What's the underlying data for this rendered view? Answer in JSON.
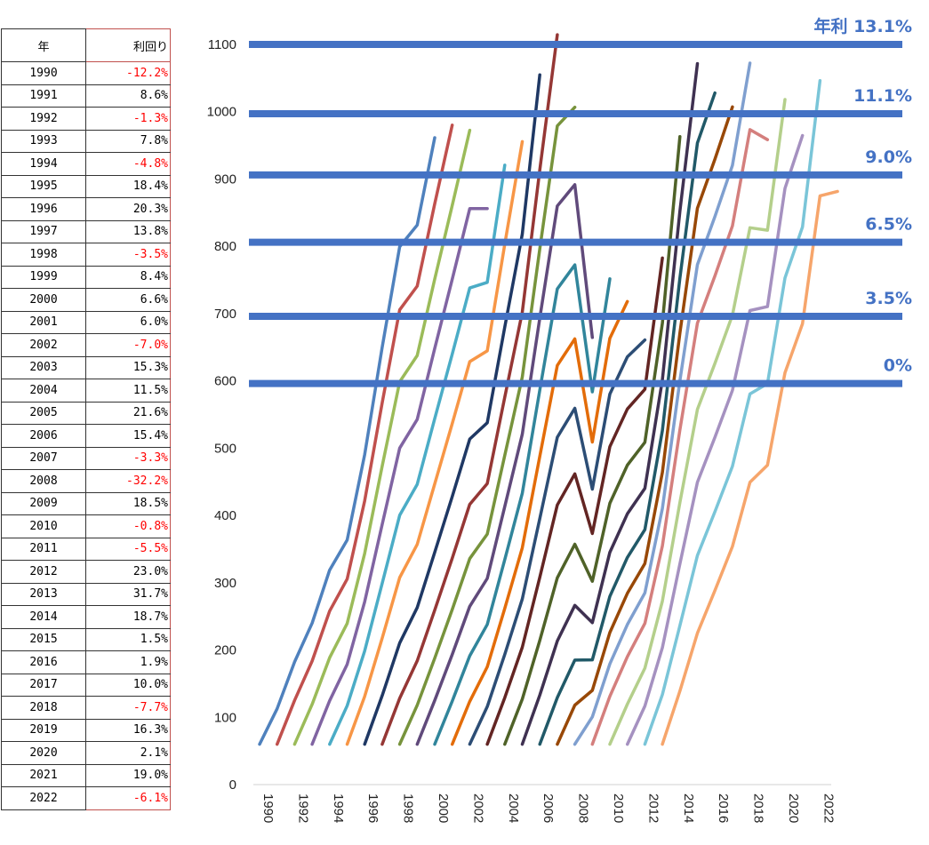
{
  "table": {
    "header_year": "年",
    "header_rate": "利回り",
    "rows": [
      {
        "year": "1990",
        "rate": "-12.2%",
        "neg": true
      },
      {
        "year": "1991",
        "rate": "8.6%",
        "neg": false
      },
      {
        "year": "1992",
        "rate": "-1.3%",
        "neg": true
      },
      {
        "year": "1993",
        "rate": "7.8%",
        "neg": false
      },
      {
        "year": "1994",
        "rate": "-4.8%",
        "neg": true
      },
      {
        "year": "1995",
        "rate": "18.4%",
        "neg": false
      },
      {
        "year": "1996",
        "rate": "20.3%",
        "neg": false
      },
      {
        "year": "1997",
        "rate": "13.8%",
        "neg": false
      },
      {
        "year": "1998",
        "rate": "-3.5%",
        "neg": true
      },
      {
        "year": "1999",
        "rate": "8.4%",
        "neg": false
      },
      {
        "year": "2000",
        "rate": "6.6%",
        "neg": false
      },
      {
        "year": "2001",
        "rate": "6.0%",
        "neg": false
      },
      {
        "year": "2002",
        "rate": "-7.0%",
        "neg": true
      },
      {
        "year": "2003",
        "rate": "15.3%",
        "neg": false
      },
      {
        "year": "2004",
        "rate": "11.5%",
        "neg": false
      },
      {
        "year": "2005",
        "rate": "21.6%",
        "neg": false
      },
      {
        "year": "2006",
        "rate": "15.4%",
        "neg": false
      },
      {
        "year": "2007",
        "rate": "-3.3%",
        "neg": true
      },
      {
        "year": "2008",
        "rate": "-32.2%",
        "neg": true
      },
      {
        "year": "2009",
        "rate": "18.5%",
        "neg": false
      },
      {
        "year": "2010",
        "rate": "-0.8%",
        "neg": true
      },
      {
        "year": "2011",
        "rate": "-5.5%",
        "neg": true
      },
      {
        "year": "2012",
        "rate": "23.0%",
        "neg": false
      },
      {
        "year": "2013",
        "rate": "31.7%",
        "neg": false
      },
      {
        "year": "2014",
        "rate": "18.7%",
        "neg": false
      },
      {
        "year": "2015",
        "rate": "1.5%",
        "neg": false
      },
      {
        "year": "2016",
        "rate": "1.9%",
        "neg": false
      },
      {
        "year": "2017",
        "rate": "10.0%",
        "neg": false
      },
      {
        "year": "2018",
        "rate": "-7.7%",
        "neg": true
      },
      {
        "year": "2019",
        "rate": "16.3%",
        "neg": false
      },
      {
        "year": "2020",
        "rate": "2.1%",
        "neg": false
      },
      {
        "year": "2021",
        "rate": "19.0%",
        "neg": false
      },
      {
        "year": "2022",
        "rate": "-6.1%",
        "neg": true
      }
    ]
  },
  "chart_data": {
    "type": "line",
    "title": "",
    "xlabel": "",
    "ylabel": "",
    "ylim": [
      0,
      1100
    ],
    "xlim": [
      1990,
      2023
    ],
    "y_ticks": [
      0,
      100,
      200,
      300,
      400,
      500,
      600,
      700,
      800,
      900,
      1000,
      1100
    ],
    "x_ticks": [
      "1990",
      "1992",
      "1994",
      "1996",
      "1998",
      "2000",
      "2002",
      "2004",
      "2006",
      "2008",
      "2010",
      "2012",
      "2014",
      "2016",
      "2018",
      "2020",
      "2022"
    ],
    "gridlines": false,
    "reference_lines": [
      {
        "label": "年利 13.1%",
        "value": 1100
      },
      {
        "label": "11.1%",
        "value": 997
      },
      {
        "label": "9.0%",
        "value": 906
      },
      {
        "label": "6.5%",
        "value": 806
      },
      {
        "label": "3.5%",
        "value": 696
      },
      {
        "label": "0%",
        "value": 596
      }
    ],
    "start_value": 60,
    "returns": [
      -12.2,
      8.6,
      -1.3,
      7.8,
      -4.8,
      18.4,
      20.3,
      13.8,
      -3.5,
      8.4,
      6.6,
      6.0,
      -7.0,
      15.3,
      11.5,
      21.6,
      15.4,
      -3.3,
      -32.2,
      18.5,
      -0.8,
      -5.5,
      23.0,
      31.7,
      18.7,
      1.5,
      1.9,
      10.0,
      -7.7,
      16.3,
      2.1,
      19.0,
      -6.1
    ],
    "series_rule": "Each line starts at 60 (approx.) in its start year and accumulates 60 per year while compounding by the annual return; one line per start year 1990-2013, each running about 10 years.",
    "series_start_years": [
      1990,
      1991,
      1992,
      1993,
      1994,
      1995,
      1996,
      1997,
      1998,
      1999,
      2000,
      2001,
      2002,
      2003,
      2004,
      2005,
      2006,
      2007,
      2008,
      2009,
      2010,
      2011,
      2012,
      2013
    ],
    "series_length_years": 10,
    "colors": {
      "reference": "#4472c4",
      "series": [
        "#4f81bd",
        "#c0504d",
        "#9bbb59",
        "#8064a2",
        "#4bacc6",
        "#f79646",
        "#1f3864",
        "#953735",
        "#77933c",
        "#604a7b",
        "#31859b",
        "#e36c09",
        "#2c4d75",
        "#632523",
        "#4f6228",
        "#3f3151",
        "#215968",
        "#984807",
        "#7f9fcf",
        "#d47f7d",
        "#b4cf8b",
        "#a591c0",
        "#7ac5d8",
        "#f6a56b"
      ]
    }
  }
}
